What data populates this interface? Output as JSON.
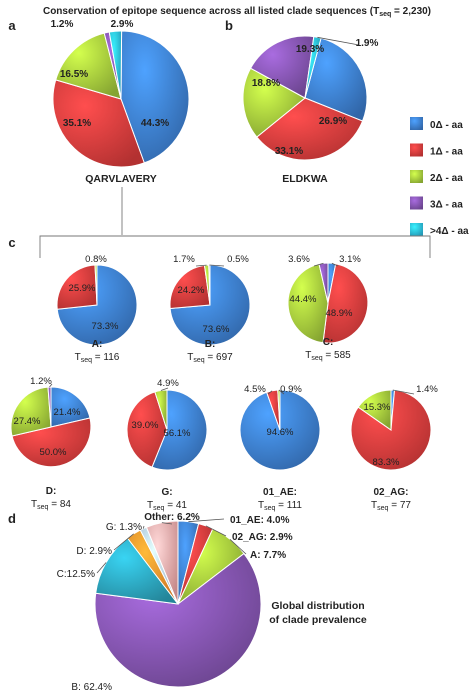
{
  "figure": {
    "title": "Conservation of epitope sequence across all listed clade sequences (",
    "title_T": "T",
    "title_sub": "seq",
    "title_tail": " = 2,230)",
    "panel_labels": {
      "a": "a",
      "b": "b",
      "c": "c",
      "d": "d"
    }
  },
  "legend": {
    "items": [
      {
        "label": "0Δ - aa",
        "color": "#3a78c6"
      },
      {
        "label": "1Δ - aa",
        "color": "#d23a3a"
      },
      {
        "label": "2Δ - aa",
        "color": "#9dc13a"
      },
      {
        "label": "3Δ - aa",
        "color": "#7d50a6"
      },
      {
        "label": ">4Δ - aa",
        "color": "#2ab3d6"
      }
    ]
  },
  "chart_data": [
    {
      "type": "pie",
      "panel": "a",
      "title": "QARVLAVERY",
      "labels": [
        "0Δ - aa",
        "1Δ - aa",
        "2Δ - aa",
        "3Δ - aa",
        ">4Δ - aa"
      ],
      "values": [
        44.3,
        35.1,
        16.5,
        1.2,
        2.9
      ],
      "value_labels": [
        "44.3%",
        "35.1%",
        "16.5%",
        "1.2%",
        "2.9%"
      ]
    },
    {
      "type": "pie",
      "panel": "b",
      "title": "ELDKWA",
      "labels": [
        "0Δ - aa",
        "1Δ - aa",
        "2Δ - aa",
        "3Δ - aa",
        ">4Δ - aa"
      ],
      "values": [
        26.9,
        33.1,
        18.8,
        19.3,
        1.9
      ],
      "value_labels": [
        "26.9%",
        "33.1%",
        "18.8%",
        "19.3%",
        "1.9%"
      ]
    },
    {
      "type": "pie",
      "panel": "c",
      "title": "A:",
      "tseq": "116",
      "labels": [
        "0Δ - aa",
        "1Δ - aa",
        "2Δ - aa"
      ],
      "values": [
        73.3,
        25.9,
        0.8
      ],
      "value_labels": [
        "73.3%",
        "25.9%",
        "0.8%"
      ]
    },
    {
      "type": "pie",
      "panel": "c",
      "title": "B:",
      "tseq": "697",
      "labels": [
        "0Δ - aa",
        "1Δ - aa",
        "2Δ - aa",
        "3Δ - aa"
      ],
      "values": [
        73.6,
        24.2,
        1.7,
        0.5
      ],
      "value_labels": [
        "73.6%",
        "24.2%",
        "1.7%",
        "0.5%"
      ]
    },
    {
      "type": "pie",
      "panel": "c",
      "title": "C:",
      "tseq": "585",
      "labels": [
        "0Δ - aa",
        "1Δ - aa",
        "2Δ - aa",
        "3Δ - aa"
      ],
      "values": [
        3.1,
        48.9,
        44.4,
        3.6
      ],
      "value_labels": [
        "3.1%",
        "48.9%",
        "44.4%",
        "3.6%"
      ]
    },
    {
      "type": "pie",
      "panel": "c",
      "title": "D:",
      "tseq": "84",
      "labels": [
        "0Δ - aa",
        "1Δ - aa",
        "2Δ - aa",
        "3Δ - aa"
      ],
      "values": [
        21.4,
        50.0,
        27.4,
        1.2
      ],
      "value_labels": [
        "21.4%",
        "50.0%",
        "27.4%",
        "1.2%"
      ]
    },
    {
      "type": "pie",
      "panel": "c",
      "title": "G:",
      "tseq": "41",
      "labels": [
        "0Δ - aa",
        "1Δ - aa",
        "2Δ - aa"
      ],
      "values": [
        56.1,
        39.0,
        4.9
      ],
      "value_labels": [
        "56.1%",
        "39.0%",
        "4.9%"
      ]
    },
    {
      "type": "pie",
      "panel": "c",
      "title": "01_AE:",
      "tseq": "111",
      "labels": [
        "0Δ - aa",
        "1Δ - aa",
        "2Δ - aa"
      ],
      "values": [
        94.6,
        4.5,
        0.9
      ],
      "value_labels": [
        "94.6%",
        "4.5%",
        "0.9%"
      ]
    },
    {
      "type": "pie",
      "panel": "c",
      "title": "02_AG:",
      "tseq": "77",
      "labels": [
        "0Δ - aa",
        "1Δ - aa",
        "2Δ - aa"
      ],
      "values": [
        1.4,
        83.3,
        15.3
      ],
      "value_labels": [
        "1.4%",
        "83.3%",
        "15.3%"
      ]
    },
    {
      "type": "pie",
      "panel": "d",
      "title": "Global distribution of clade prevalence",
      "labels": [
        "01_AE",
        "02_AG",
        "A",
        "B",
        "C",
        "D",
        "G",
        "Other"
      ],
      "values": [
        4.0,
        2.9,
        7.7,
        62.4,
        12.5,
        2.9,
        1.3,
        6.2
      ],
      "value_labels": [
        "01_AE: 4.0%",
        "02_AG: 2.9%",
        "A: 7.7%",
        "B: 62.4%",
        "C:12.5%",
        "D: 2.9%",
        "G: 1.3%",
        "Other: 6.2%"
      ],
      "colors": [
        "#3a78c6",
        "#d23a3a",
        "#9dc13a",
        "#7d50a6",
        "#2a9db4",
        "#f08a2a",
        "#a9c3e6",
        "#e8a0a0"
      ]
    }
  ]
}
